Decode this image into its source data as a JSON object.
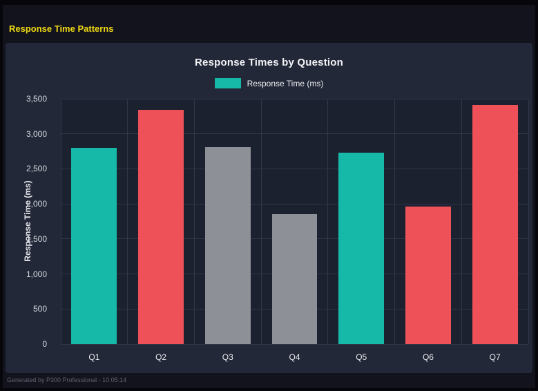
{
  "page": {
    "title": "Response Time Patterns"
  },
  "colors": {
    "heading": "#f0d912",
    "teal": "#16b8a8",
    "red": "#ee5158",
    "gray": "#8e9097",
    "page_bg": "#13131e",
    "card_bg": "#232838"
  },
  "footer": {
    "text": "Generated by P300 Professional - 10:05:14"
  },
  "chart_data": {
    "type": "bar",
    "title": "Response Times by Question",
    "legend": "Response Time (ms)",
    "categories": [
      "Q1",
      "Q2",
      "Q3",
      "Q4",
      "Q5",
      "Q6",
      "Q7"
    ],
    "values": [
      2800,
      3340,
      2810,
      1850,
      2730,
      1960,
      3410
    ],
    "bar_colors": [
      "#16b8a8",
      "#ee5158",
      "#8e9097",
      "#8e9097",
      "#16b8a8",
      "#ee5158",
      "#ee5158"
    ],
    "series_color": "#16b8a8",
    "xlabel": "",
    "ylabel": "Response Time (ms)",
    "ylim": [
      0,
      3500
    ],
    "ytick_step": 500,
    "ytick_labels": [
      "0",
      "500",
      "1,000",
      "1,500",
      "2,000",
      "2,500",
      "3,000",
      "3,500"
    ],
    "grid": true,
    "legend_position": "top"
  }
}
